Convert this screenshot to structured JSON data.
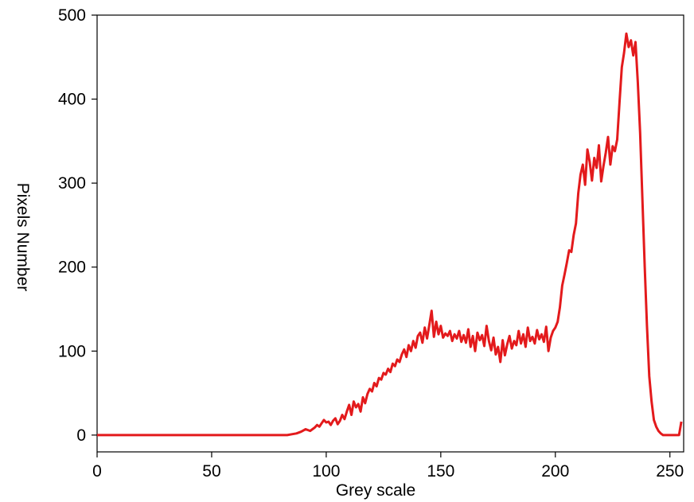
{
  "chart_data": {
    "type": "line",
    "title": "",
    "xlabel": "Grey scale",
    "ylabel": "Pixels Number",
    "xlim": [
      0,
      256
    ],
    "ylim": [
      -20,
      500
    ],
    "xticks": [
      "0",
      "50",
      "100",
      "150",
      "200",
      "250"
    ],
    "yticks": [
      "0",
      "100",
      "200",
      "300",
      "400",
      "500"
    ],
    "grid": false,
    "legend": "none",
    "line_color": "#e31a1c",
    "series": [
      {
        "x": [
          0,
          10,
          20,
          30,
          40,
          50,
          60,
          70,
          80,
          83,
          85,
          87,
          89,
          91,
          93,
          95,
          96,
          97,
          98,
          99,
          100,
          101,
          102,
          103,
          104,
          105,
          106,
          107,
          108,
          109,
          110,
          111,
          112,
          113,
          114,
          115,
          116,
          117,
          118,
          119,
          120,
          121,
          122,
          123,
          124,
          125,
          126,
          127,
          128,
          129,
          130,
          131,
          132,
          133,
          134,
          135,
          136,
          137,
          138,
          139,
          140,
          141,
          142,
          143,
          144,
          145,
          146,
          147,
          148,
          149,
          150,
          151,
          152,
          153,
          154,
          155,
          156,
          157,
          158,
          159,
          160,
          161,
          162,
          163,
          164,
          165,
          166,
          167,
          168,
          169,
          170,
          171,
          172,
          173,
          174,
          175,
          176,
          177,
          178,
          179,
          180,
          181,
          182,
          183,
          184,
          185,
          186,
          187,
          188,
          189,
          190,
          191,
          192,
          193,
          194,
          195,
          196,
          197,
          198,
          199,
          200,
          201,
          202,
          203,
          204,
          205,
          206,
          207,
          208,
          209,
          210,
          211,
          212,
          213,
          214,
          215,
          216,
          217,
          218,
          219,
          220,
          221,
          222,
          223,
          224,
          225,
          226,
          227,
          228,
          229,
          230,
          231,
          232,
          233,
          234,
          235,
          236,
          237,
          238,
          239,
          240,
          241,
          242,
          243,
          244,
          245,
          246,
          247,
          248,
          249,
          250,
          251,
          252,
          253,
          254,
          255
        ],
        "y": [
          0,
          0,
          0,
          0,
          0,
          0,
          0,
          0,
          0,
          0,
          1,
          2,
          4,
          7,
          5,
          9,
          12,
          10,
          14,
          18,
          15,
          16,
          12,
          17,
          20,
          13,
          17,
          24,
          19,
          28,
          36,
          24,
          40,
          33,
          37,
          28,
          45,
          38,
          49,
          55,
          52,
          62,
          58,
          68,
          66,
          74,
          72,
          79,
          75,
          85,
          82,
          90,
          87,
          96,
          102,
          93,
          107,
          100,
          112,
          104,
          118,
          122,
          110,
          128,
          115,
          131,
          148,
          117,
          135,
          120,
          130,
          116,
          121,
          118,
          124,
          112,
          120,
          115,
          124,
          111,
          119,
          110,
          126,
          105,
          118,
          100,
          122,
          113,
          119,
          106,
          130,
          112,
          101,
          116,
          96,
          105,
          87,
          113,
          95,
          108,
          118,
          103,
          112,
          107,
          124,
          109,
          120,
          105,
          128,
          112,
          117,
          109,
          125,
          114,
          120,
          111,
          129,
          100,
          116,
          124,
          128,
          135,
          152,
          178,
          191,
          205,
          220,
          218,
          238,
          252,
          288,
          310,
          322,
          298,
          340,
          325,
          303,
          330,
          318,
          345,
          302,
          320,
          336,
          355,
          322,
          344,
          338,
          352,
          396,
          438,
          455,
          478,
          462,
          470,
          452,
          468,
          420,
          360,
          280,
          200,
          130,
          70,
          40,
          18,
          10,
          5,
          2,
          0,
          0,
          0,
          0,
          0,
          0,
          0,
          0,
          16
        ]
      }
    ]
  }
}
